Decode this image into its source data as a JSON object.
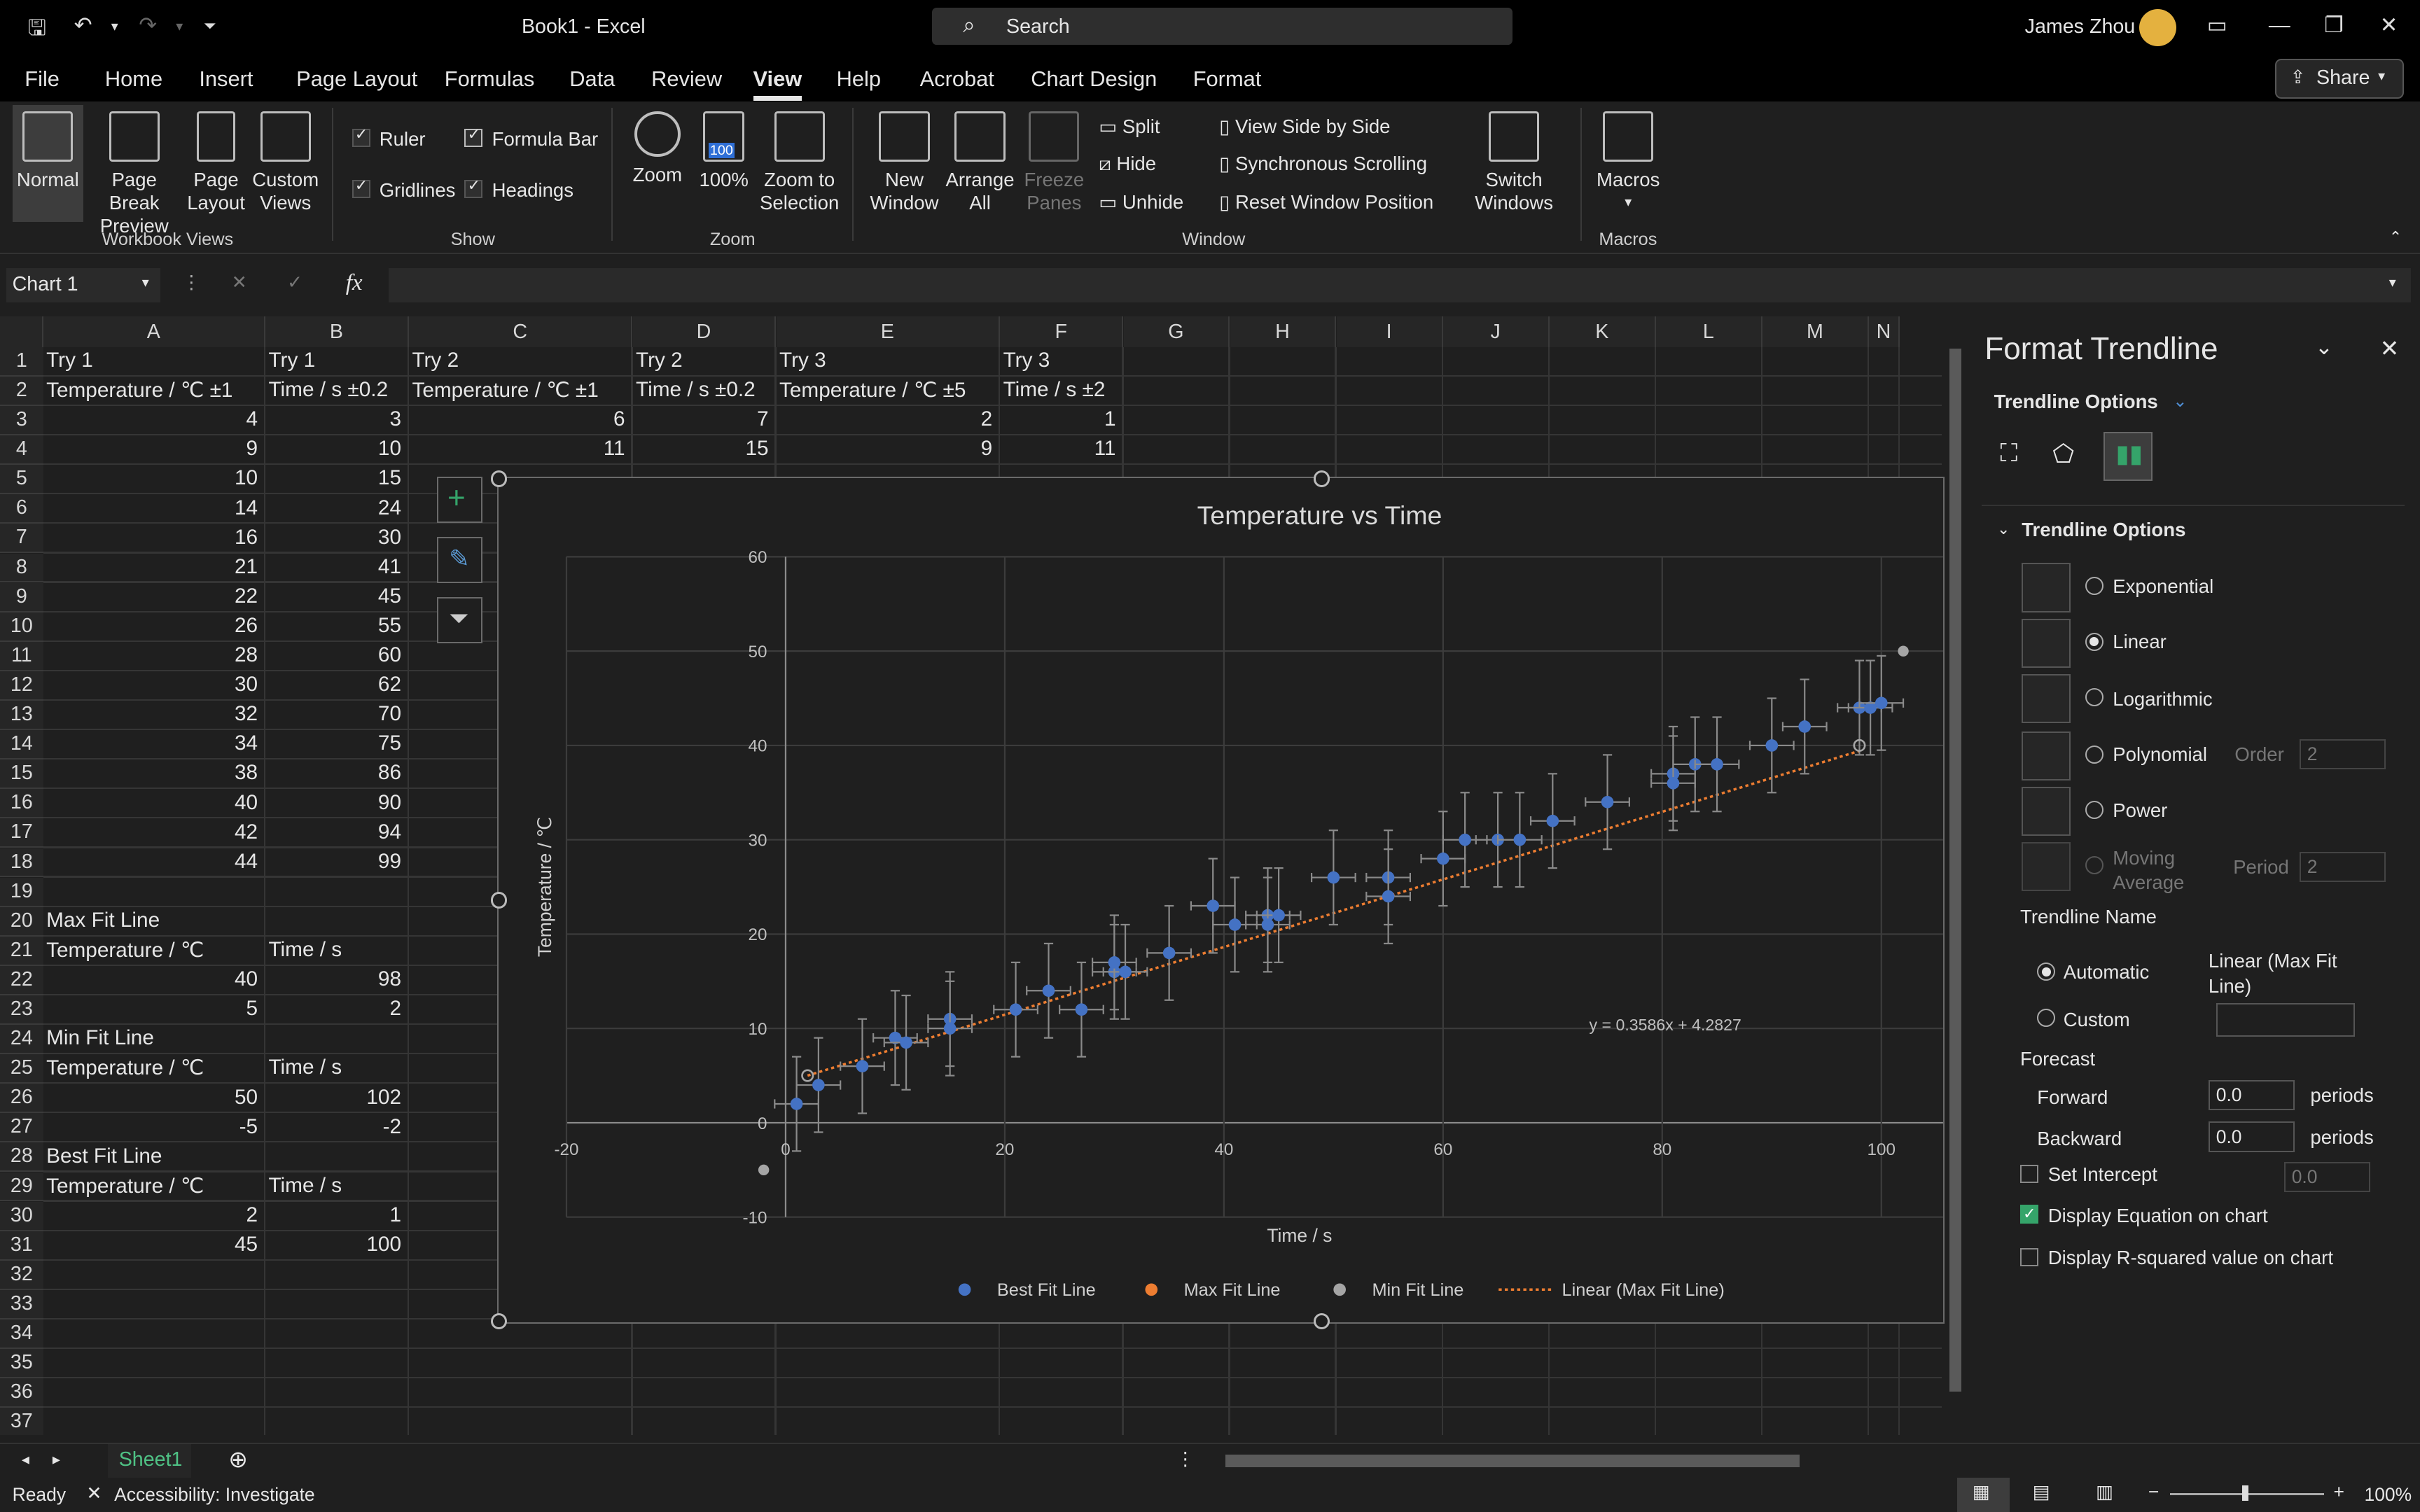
{
  "app": {
    "doc_title": "Book1  -  Excel",
    "search_placeholder": "Search",
    "user_name": "James Zhou"
  },
  "menu": [
    "File",
    "Home",
    "Insert",
    "Page Layout",
    "Formulas",
    "Data",
    "Review",
    "View",
    "Help",
    "Acrobat",
    "Chart Design",
    "Format"
  ],
  "share_label": "Share",
  "ribbon": {
    "workbook_views": {
      "label": "Workbook Views",
      "normal": "Normal",
      "page_break": [
        "Page Break",
        "Preview"
      ],
      "page_layout": [
        "Page",
        "Layout"
      ],
      "custom_views": [
        "Custom",
        "Views"
      ]
    },
    "show": {
      "label": "Show",
      "ruler": "Ruler",
      "formula_bar": "Formula Bar",
      "gridlines": "Gridlines",
      "headings": "Headings"
    },
    "zoom": {
      "label": "Zoom",
      "zoom": "Zoom",
      "hundred": "100%",
      "zoom_to_sel": [
        "Zoom to",
        "Selection"
      ],
      "icon_badge": "100"
    },
    "window": {
      "label": "Window",
      "new_window": [
        "New",
        "Window"
      ],
      "arrange_all": [
        "Arrange",
        "All"
      ],
      "freeze": [
        "Freeze",
        "Panes"
      ],
      "split": "Split",
      "hide": "Hide",
      "unhide": "Unhide",
      "side_by_side": "View Side by Side",
      "sync_scroll": "Synchronous Scrolling",
      "reset_pos": "Reset Window Position",
      "switch": [
        "Switch",
        "Windows"
      ]
    },
    "macros": {
      "label": "Macros",
      "macros": "Macros"
    }
  },
  "formula_bar": {
    "name_box": "Chart 1",
    "fx": "fx"
  },
  "columns": [
    "A",
    "B",
    "C",
    "D",
    "E",
    "F",
    "G",
    "H",
    "I",
    "J",
    "K",
    "L",
    "M",
    "N"
  ],
  "rows": [
    "1",
    "2",
    "3",
    "4",
    "5",
    "6",
    "7",
    "8",
    "9",
    "10",
    "11",
    "12",
    "13",
    "14",
    "15",
    "16",
    "17",
    "18",
    "19",
    "20",
    "21",
    "22",
    "23",
    "24",
    "25",
    "26",
    "27",
    "28",
    "29",
    "30",
    "31",
    "32",
    "33",
    "34",
    "35",
    "36",
    "37"
  ],
  "cells": {
    "r1": [
      "Try 1",
      "Try 1",
      "Try 2",
      "Try 2",
      "Try 3",
      "Try 3"
    ],
    "r2": [
      "Temperature / ℃ ±1",
      "Time / s ±0.2",
      "Temperature / ℃ ±1",
      "Time / s ±0.2",
      "Temperature / ℃ ±5",
      "Time / s ±2"
    ],
    "r3": [
      "4",
      "3",
      "6",
      "7",
      "2",
      "1"
    ],
    "r4": [
      "9",
      "10",
      "11",
      "15",
      "9",
      "11"
    ],
    "rows_5_18": [
      [
        "10",
        "15"
      ],
      [
        "14",
        "24"
      ],
      [
        "16",
        "30"
      ],
      [
        "21",
        "41"
      ],
      [
        "22",
        "45"
      ],
      [
        "26",
        "55"
      ],
      [
        "28",
        "60"
      ],
      [
        "30",
        "62"
      ],
      [
        "32",
        "70"
      ],
      [
        "34",
        "75"
      ],
      [
        "38",
        "86"
      ],
      [
        "40",
        "90"
      ],
      [
        "42",
        "94"
      ],
      [
        "44",
        "99"
      ]
    ],
    "r20": "Max Fit Line",
    "r21": [
      "Temperature / ℃",
      "Time / s"
    ],
    "r22": [
      "40",
      "98"
    ],
    "r23": [
      "5",
      "2"
    ],
    "r24": "Min Fit Line",
    "r25": [
      "Temperature / ℃",
      "Time / s"
    ],
    "r26": [
      "50",
      "102"
    ],
    "r27": [
      "-5",
      "-2"
    ],
    "r28": "Best Fit Line",
    "r29": [
      "Temperature / ℃",
      "Time / s"
    ],
    "r30": [
      "2",
      "1"
    ],
    "r31": [
      "45",
      "100"
    ]
  },
  "chart_data": {
    "type": "scatter",
    "title": "Temperature vs Time",
    "xlabel": "Time / s",
    "ylabel": "Temperature / ℃",
    "xlim": [
      -20,
      100
    ],
    "ylim": [
      -10,
      60
    ],
    "x_ticks": [
      "-20",
      "0",
      "20",
      "40",
      "60",
      "80",
      "100"
    ],
    "y_ticks": [
      "-10",
      "0",
      "10",
      "20",
      "30",
      "40",
      "50",
      "60"
    ],
    "equation": "y = 0.3586x + 4.2827",
    "legend": [
      "Best Fit Line",
      "Max Fit Line",
      "Min Fit Line",
      "Linear (Max Fit Line)"
    ],
    "legend_colors": [
      "#4472c4",
      "#ed7d31",
      "#a5a5a5",
      "#ed7d31"
    ],
    "series": [
      {
        "name": "Best Fit Line",
        "color": "#4472c4",
        "points": [
          [
            1,
            2
          ],
          [
            3,
            4
          ],
          [
            7,
            6
          ],
          [
            10,
            9
          ],
          [
            11,
            8.5
          ],
          [
            15,
            11
          ],
          [
            15,
            10
          ],
          [
            21,
            12
          ],
          [
            24,
            14
          ],
          [
            27,
            12
          ],
          [
            30,
            16
          ],
          [
            30,
            17
          ],
          [
            31,
            16
          ],
          [
            35,
            18
          ],
          [
            39,
            23
          ],
          [
            41,
            21
          ],
          [
            44,
            22
          ],
          [
            44,
            21
          ],
          [
            45,
            22
          ],
          [
            50,
            26
          ],
          [
            55,
            26
          ],
          [
            55,
            24
          ],
          [
            60,
            28
          ],
          [
            62,
            30
          ],
          [
            65,
            30
          ],
          [
            67,
            30
          ],
          [
            70,
            32
          ],
          [
            75,
            34
          ],
          [
            81,
            37
          ],
          [
            81,
            36
          ],
          [
            83,
            38
          ],
          [
            85,
            38
          ],
          [
            90,
            40
          ],
          [
            93,
            42
          ],
          [
            98,
            44
          ],
          [
            99,
            44
          ],
          [
            100,
            44.5
          ]
        ],
        "yerr": [
          5,
          5,
          5,
          5,
          5,
          5,
          5,
          5,
          5,
          5,
          5,
          5,
          5,
          5,
          5,
          5,
          5,
          5,
          5,
          5,
          5,
          5,
          5,
          5,
          5,
          5,
          5,
          5,
          5,
          5,
          5,
          5,
          5,
          5,
          5,
          5,
          5
        ],
        "xerr": 2
      },
      {
        "name": "Max Fit Line",
        "color": "#ed7d31",
        "points": [
          [
            2,
            5
          ],
          [
            98,
            40
          ]
        ]
      },
      {
        "name": "Min Fit Line",
        "color": "#a5a5a5",
        "points": [
          [
            -2,
            -5
          ],
          [
            102,
            50
          ]
        ]
      }
    ],
    "trendline": {
      "name": "Linear (Max Fit Line)",
      "color": "#ed7d31",
      "slope": 0.3586,
      "intercept": 4.2827,
      "x_range": [
        2,
        98
      ]
    }
  },
  "pane": {
    "title": "Format Trendline",
    "subtitle": "Trendline Options",
    "section": "Trendline Options",
    "types": [
      "Exponential",
      "Linear",
      "Logarithmic",
      "Polynomial",
      "Power",
      "Moving Average"
    ],
    "selected_type": "Linear",
    "order_label": "Order",
    "order_value": "2",
    "period_label": "Period",
    "period_value": "2",
    "name_label": "Trendline Name",
    "automatic_label": "Automatic",
    "automatic_value": "Linear (Max Fit Line)",
    "custom_label": "Custom",
    "forecast_label": "Forecast",
    "forward_label": "Forward",
    "forward_value": "0.0",
    "backward_label": "Backward",
    "backward_value": "0.0",
    "periods_label": "periods",
    "set_intercept_label": "Set Intercept",
    "intercept_value": "0.0",
    "display_eq_label": "Display Equation on chart",
    "display_r2_label": "Display R-squared value on chart"
  },
  "sheet_tab": "Sheet1",
  "status": {
    "ready": "Ready",
    "accessibility": "Accessibility: Investigate",
    "zoom": "100%"
  }
}
